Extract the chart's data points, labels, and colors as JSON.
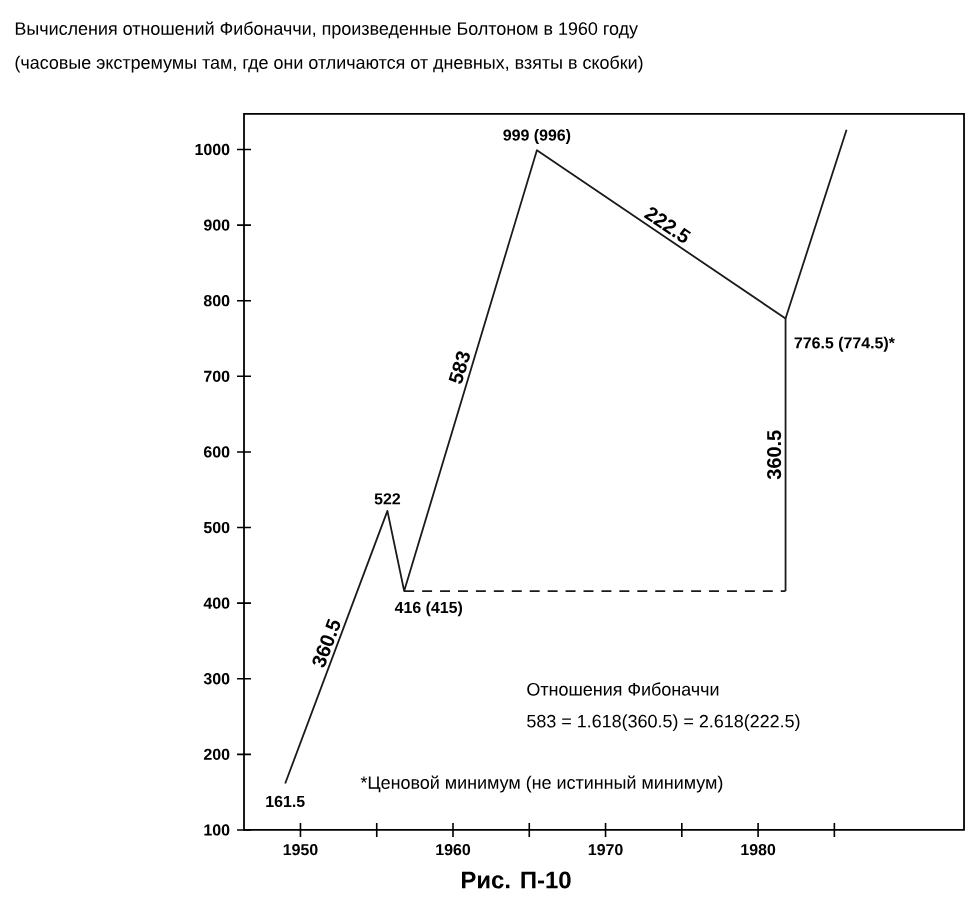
{
  "chart_data": {
    "type": "line",
    "title": "Вычисления отношений Фибоначчи, произведенные Болтоном в 1960 году",
    "subtitle": "(часовые экстремумы там, где они отличаются от дневных, взяты в скобки)",
    "xlim": [
      1946.3,
      1993.5
    ],
    "ylim": [
      100,
      1047
    ],
    "xticks": [
      1950,
      {
        "value": 1955,
        "label": null
      },
      1960,
      {
        "value": 1965,
        "label": null
      },
      1970,
      {
        "value": 1975,
        "label": null
      },
      1980,
      {
        "value": 1985,
        "label": null
      }
    ],
    "yticks": [
      100,
      200,
      300,
      400,
      500,
      600,
      700,
      800,
      900,
      1000
    ],
    "line_style": "solid",
    "grid": false,
    "series": [
      {
        "color": "#1a1a1a",
        "x": [
          1949,
          1955.7,
          1956.8,
          1965.5,
          1981.8,
          1985.8
        ],
        "values": [
          161.5,
          522,
          416,
          999,
          776.5,
          1026
        ],
        "value_labels": [
          "161.5",
          "522",
          "416 (415)",
          "999 (996)",
          "776.5 (774.5)*",
          null
        ]
      },
      {
        "color": "#1a1a1a",
        "line_style": "dashed",
        "x": [
          1956.8,
          1981.8
        ],
        "values": [
          416,
          416
        ]
      },
      {
        "color": "#1a1a1a",
        "x": [
          1981.8,
          1981.8
        ],
        "values": [
          416,
          776.5
        ]
      }
    ],
    "annotations": [
      {
        "text": "360.5",
        "x": 1952.4,
        "y": 341.75
      },
      {
        "text": "583",
        "x": 1961.15,
        "y": 707.5
      },
      {
        "text": "222.5",
        "x": 1973.65,
        "y": 887.75
      },
      {
        "text": "360.5",
        "x": 1981.8,
        "y": 596.25
      },
      "Отношения Фибоначчи",
      "583 = 1.618(360.5) = 2.618(222.5)",
      "*Ценовой минимум (не истинный минимум)",
      "Рис. П-10"
    ]
  }
}
